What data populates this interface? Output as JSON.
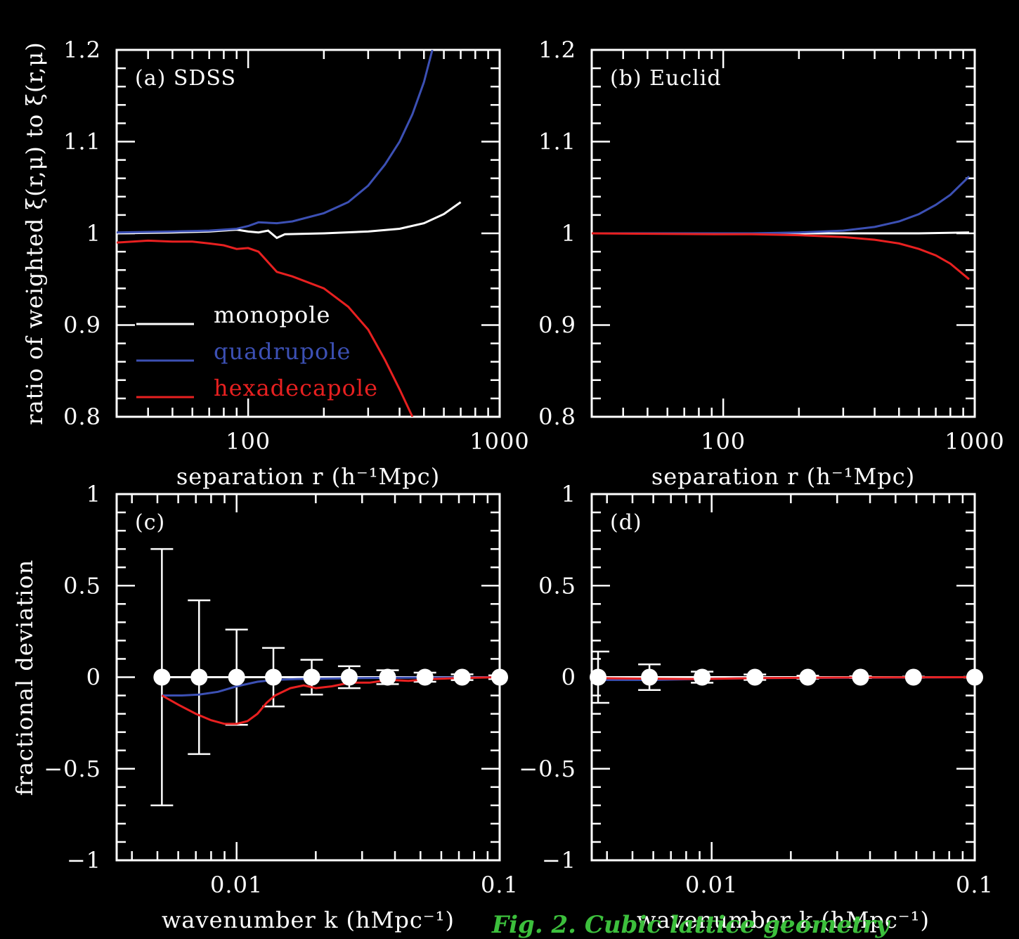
{
  "chart_data": [
    {
      "panel": "(a) SDSS",
      "type": "line",
      "xscale": "log",
      "xlim": [
        30,
        1000
      ],
      "ylim": [
        0.8,
        1.2
      ],
      "xlabel": "separation r (h⁻¹Mpc)",
      "ylabel": "ratio of weighted ξ(r,μ) to ξ(r,μ)",
      "xticklabels": [
        "100",
        "1000"
      ],
      "xticks": [
        100,
        1000
      ],
      "yticks": [
        0.8,
        0.9,
        1,
        1.1,
        1.2
      ],
      "yticklabels": [
        "0.8",
        "0.9",
        "1",
        "1.1",
        "1.2"
      ],
      "legend": {
        "placement": "lower-left",
        "entries": [
          "monopole",
          "quadrupole",
          "hexadecapole"
        ]
      },
      "series": [
        {
          "name": "monopole",
          "color": "#ffffff",
          "x": [
            30,
            50,
            70,
            90,
            100,
            110,
            120,
            130,
            140,
            200,
            300,
            400,
            500,
            600,
            700
          ],
          "y": [
            1.0,
            1.001,
            1.002,
            1.004,
            1.002,
            1.001,
            1.003,
            0.995,
            0.999,
            1.0,
            1.002,
            1.005,
            1.011,
            1.021,
            1.034
          ]
        },
        {
          "name": "quadrupole",
          "color": "#3c50b4",
          "x": [
            30,
            50,
            70,
            90,
            100,
            110,
            130,
            150,
            200,
            250,
            300,
            350,
            400,
            450,
            500,
            540
          ],
          "y": [
            1.001,
            1.002,
            1.003,
            1.005,
            1.008,
            1.012,
            1.011,
            1.013,
            1.022,
            1.034,
            1.052,
            1.075,
            1.1,
            1.13,
            1.165,
            1.2
          ]
        },
        {
          "name": "hexadecapole",
          "color": "#e82020",
          "x": [
            30,
            40,
            50,
            60,
            70,
            80,
            90,
            100,
            110,
            130,
            150,
            200,
            250,
            300,
            350,
            400,
            450
          ],
          "y": [
            0.99,
            0.992,
            0.991,
            0.991,
            0.989,
            0.987,
            0.983,
            0.984,
            0.98,
            0.958,
            0.953,
            0.94,
            0.92,
            0.895,
            0.862,
            0.83,
            0.8
          ]
        }
      ]
    },
    {
      "panel": "(b) Euclid",
      "type": "line",
      "xscale": "log",
      "xlim": [
        30,
        1000
      ],
      "ylim": [
        0.8,
        1.2
      ],
      "xlabel": "separation r (h⁻¹Mpc)",
      "xticklabels": [
        "100",
        "1000"
      ],
      "xticks": [
        100,
        1000
      ],
      "yticks": [
        0.8,
        0.9,
        1,
        1.1,
        1.2
      ],
      "yticklabels": [
        "0.8",
        "0.9",
        "1",
        "1.1",
        "1.2"
      ],
      "series": [
        {
          "name": "monopole",
          "color": "#ffffff",
          "x": [
            30,
            100,
            300,
            600,
            950
          ],
          "y": [
            1.0,
            1.0,
            1.0,
            1.0,
            1.001
          ]
        },
        {
          "name": "quadrupole",
          "color": "#3c50b4",
          "x": [
            30,
            100,
            130,
            200,
            300,
            400,
            500,
            600,
            700,
            800,
            950
          ],
          "y": [
            1.0,
            1.0,
            1.0,
            1.001,
            1.003,
            1.007,
            1.013,
            1.021,
            1.031,
            1.042,
            1.062
          ]
        },
        {
          "name": "hexadecapole",
          "color": "#e82020",
          "x": [
            30,
            100,
            130,
            200,
            300,
            400,
            500,
            600,
            700,
            800,
            950
          ],
          "y": [
            1.0,
            0.999,
            0.999,
            0.998,
            0.996,
            0.993,
            0.989,
            0.983,
            0.976,
            0.967,
            0.95
          ]
        }
      ]
    },
    {
      "panel": "(c)",
      "type": "scatter",
      "xscale": "log",
      "xlim": [
        0.0035,
        0.1
      ],
      "ylim": [
        -1,
        1
      ],
      "xlabel": "wavenumber k (hMpc⁻¹)",
      "ylabel": "fractional deviation",
      "xticklabels": [
        "0.01",
        "0.1"
      ],
      "xticks": [
        0.01,
        0.1
      ],
      "yticks": [
        -1,
        -0.5,
        0,
        0.5,
        1
      ],
      "yticklabels": [
        "−1",
        "−0.5",
        "0",
        "0.5",
        "1"
      ],
      "points": {
        "x": [
          0.0052,
          0.0072,
          0.01,
          0.0138,
          0.0193,
          0.0268,
          0.0375,
          0.052,
          0.072,
          0.1
        ],
        "y": [
          0,
          0,
          0,
          0,
          0,
          0,
          0,
          0,
          0,
          0
        ],
        "err": [
          0.7,
          0.42,
          0.26,
          0.16,
          0.095,
          0.06,
          0.038,
          0.025,
          0.016,
          0.01
        ]
      },
      "series": [
        {
          "name": "quadrupole",
          "color": "#3c50b4",
          "x": [
            0.0052,
            0.0062,
            0.0072,
            0.0085,
            0.01,
            0.012,
            0.0138,
            0.017,
            0.02,
            0.03,
            0.05,
            0.1
          ],
          "y": [
            -0.1,
            -0.1,
            -0.095,
            -0.08,
            -0.05,
            -0.025,
            -0.015,
            -0.01,
            -0.008,
            -0.005,
            -0.002,
            0
          ]
        },
        {
          "name": "hexadecapole",
          "color": "#e82020",
          "x": [
            0.0052,
            0.006,
            0.007,
            0.008,
            0.009,
            0.01,
            0.011,
            0.012,
            0.013,
            0.014,
            0.016,
            0.018,
            0.02,
            0.023,
            0.027,
            0.032,
            0.038,
            0.045,
            0.055,
            0.07,
            0.1
          ],
          "y": [
            -0.1,
            -0.15,
            -0.2,
            -0.235,
            -0.255,
            -0.255,
            -0.24,
            -0.2,
            -0.14,
            -0.1,
            -0.06,
            -0.045,
            -0.06,
            -0.05,
            -0.03,
            -0.03,
            -0.015,
            -0.02,
            -0.01,
            -0.005,
            0
          ]
        }
      ]
    },
    {
      "panel": "(d)",
      "type": "scatter",
      "xscale": "log",
      "xlim": [
        0.0035,
        0.1
      ],
      "ylim": [
        -1,
        1
      ],
      "xlabel": "wavenumber k (hMpc⁻¹)",
      "xticklabels": [
        "0.01",
        "0.1"
      ],
      "xticks": [
        0.01,
        0.1
      ],
      "yticks": [
        -1,
        -0.5,
        0,
        0.5,
        1
      ],
      "yticklabels": [
        "−1",
        "−0.5",
        "0",
        "0.5",
        "1"
      ],
      "points": {
        "x": [
          0.0037,
          0.0058,
          0.0092,
          0.0146,
          0.0232,
          0.0368,
          0.0585,
          0.1
        ],
        "y": [
          0,
          0,
          0,
          0,
          0,
          0,
          0,
          0
        ],
        "err": [
          0.14,
          0.07,
          0.03,
          0.015,
          0.008,
          0.005,
          0.003,
          0.002
        ]
      },
      "series": [
        {
          "name": "quadrupole",
          "color": "#3c50b4",
          "x": [
            0.0035,
            0.006,
            0.009,
            0.015,
            0.1
          ],
          "y": [
            -0.015,
            -0.015,
            -0.01,
            -0.005,
            0
          ]
        },
        {
          "name": "hexadecapole",
          "color": "#e82020",
          "x": [
            0.0035,
            0.006,
            0.009,
            0.015,
            0.03,
            0.1
          ],
          "y": [
            -0.005,
            -0.008,
            -0.01,
            -0.005,
            -0.002,
            0
          ]
        }
      ]
    }
  ],
  "overlay_text": "Fig. 2. Cubic lattice geometry"
}
